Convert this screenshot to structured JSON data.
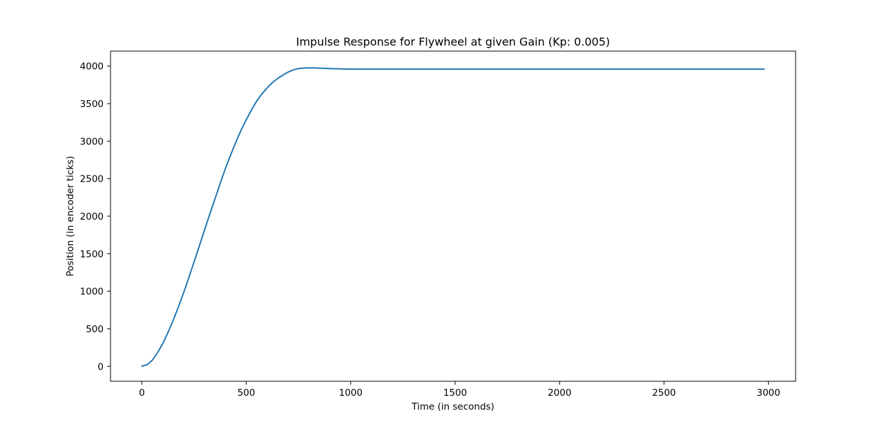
{
  "chart_data": {
    "type": "line",
    "title": "Impulse Response for Flywheel at given Gain (Kp: 0.005)",
    "xlabel": "Time (in seconds)",
    "ylabel": "Position (in encoder ticks)",
    "xlim": [
      -150,
      3130
    ],
    "ylim": [
      -200,
      4200
    ],
    "xticks": [
      0,
      500,
      1000,
      1500,
      2000,
      2500,
      3000
    ],
    "yticks": [
      0,
      500,
      1000,
      1500,
      2000,
      2500,
      3000,
      3500,
      4000
    ],
    "grid": false,
    "legend": "none",
    "series": [
      {
        "color": "#1f77b4",
        "x": [
          0,
          25,
          50,
          75,
          100,
          125,
          150,
          175,
          200,
          225,
          250,
          275,
          300,
          325,
          350,
          375,
          400,
          425,
          450,
          475,
          500,
          525,
          550,
          575,
          600,
          625,
          650,
          675,
          700,
          725,
          750,
          775,
          800,
          825,
          850,
          875,
          900,
          950,
          1000,
          1050,
          1100,
          1200,
          1500,
          2000,
          2500,
          2980
        ],
        "y": [
          0,
          20,
          80,
          180,
          300,
          450,
          610,
          790,
          980,
          1180,
          1390,
          1600,
          1815,
          2025,
          2230,
          2435,
          2635,
          2815,
          2985,
          3145,
          3285,
          3415,
          3535,
          3630,
          3710,
          3780,
          3835,
          3880,
          3920,
          3950,
          3968,
          3975,
          3977,
          3976,
          3973,
          3970,
          3967,
          3963,
          3961,
          3960,
          3960,
          3960,
          3960,
          3960,
          3960,
          3960
        ]
      }
    ]
  }
}
